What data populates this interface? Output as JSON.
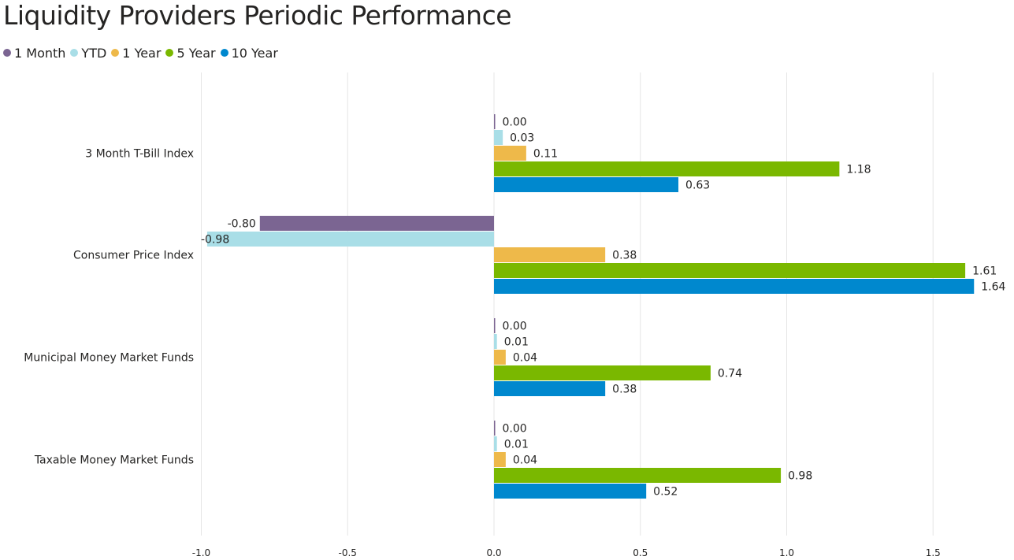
{
  "chart_data": {
    "type": "bar",
    "orientation": "horizontal",
    "title": "Liquidity Providers Periodic Performance",
    "categories": [
      "3 Month T-Bill Index",
      "Consumer Price Index",
      "Municipal Money Market Funds",
      "Taxable Money Market Funds"
    ],
    "series": [
      {
        "name": "1 Month",
        "color": "#7B6592",
        "values": [
          0.0,
          -0.8,
          0.0,
          0.0
        ]
      },
      {
        "name": "YTD",
        "color": "#A9DEE7",
        "values": [
          0.03,
          -0.98,
          0.01,
          0.01
        ]
      },
      {
        "name": "1 Year",
        "color": "#EEB94A",
        "values": [
          0.11,
          0.38,
          0.04,
          0.04
        ]
      },
      {
        "name": "5 Year",
        "color": "#7AB800",
        "values": [
          1.18,
          1.61,
          0.74,
          0.98
        ]
      },
      {
        "name": "10 Year",
        "color": "#0088CE",
        "values": [
          0.63,
          1.64,
          0.38,
          0.52
        ]
      }
    ],
    "data_labels": [
      [
        "0.00",
        "-0.80",
        "0.00",
        "0.00"
      ],
      [
        "0.03",
        "-0.98",
        "0.01",
        "0.01"
      ],
      [
        "0.11",
        "0.38",
        "0.04",
        "0.04"
      ],
      [
        "1.18",
        "1.61",
        "0.74",
        "0.98"
      ],
      [
        "0.63",
        "1.64",
        "0.38",
        "0.52"
      ]
    ],
    "xlim": [
      -1.0,
      1.7
    ],
    "xticks": [
      -1.0,
      -0.5,
      0.0,
      0.5,
      1.0,
      1.5
    ],
    "xtick_labels": [
      "-1.0",
      "-0.5",
      "0.0",
      "0.5",
      "1.0",
      "1.5"
    ],
    "grid": true,
    "legend_position": "top-left"
  }
}
